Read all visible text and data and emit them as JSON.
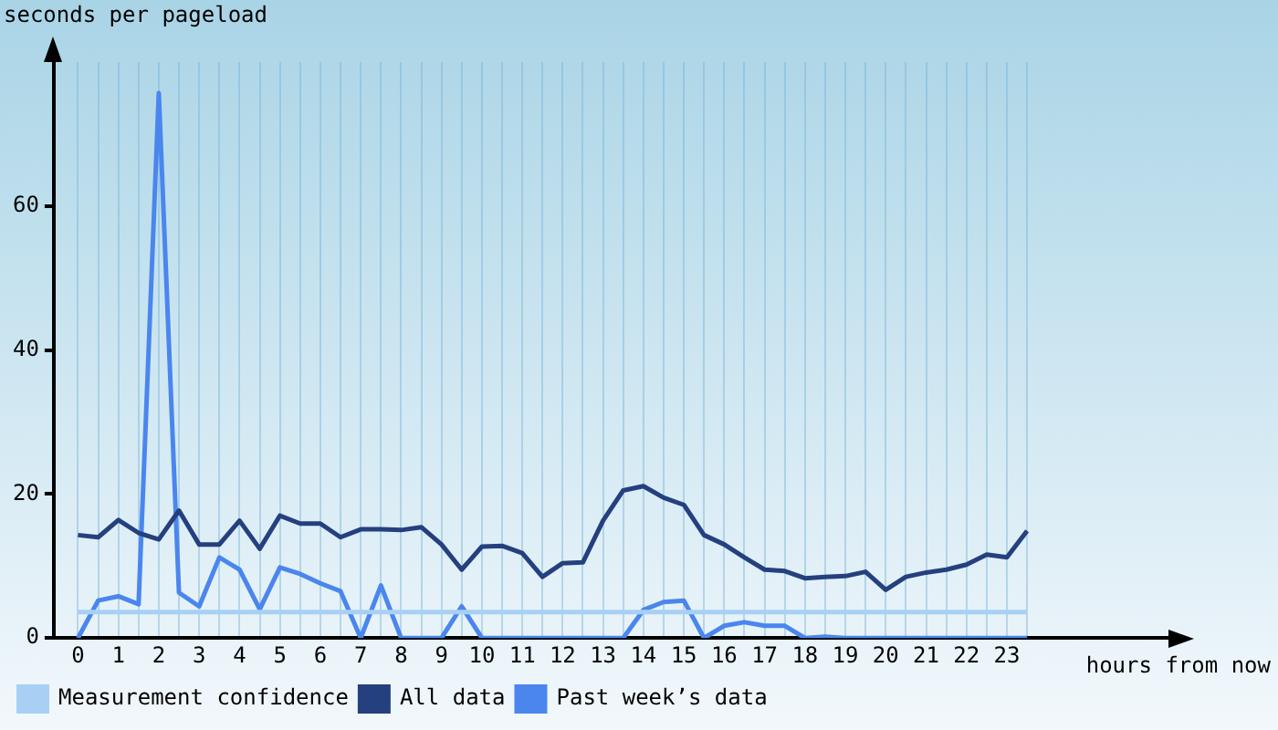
{
  "chart_data": {
    "type": "line",
    "ylabel": "seconds per pageload",
    "xlabel": "hours from now",
    "x": [
      0,
      0.5,
      1,
      1.5,
      2,
      2.5,
      3,
      3.5,
      4,
      4.5,
      5,
      5.5,
      6,
      6.5,
      7,
      7.5,
      8,
      8.5,
      9,
      9.5,
      10,
      10.5,
      11,
      11.5,
      12,
      12.5,
      13,
      13.5,
      14,
      14.5,
      15,
      15.5,
      16,
      16.5,
      17,
      17.5,
      18,
      18.5,
      19,
      19.5,
      20,
      20.5,
      21,
      21.5,
      22,
      22.5,
      23,
      23.5
    ],
    "series": [
      {
        "name": "Measurement confidence",
        "color": "#a8d0f4",
        "values": [
          3.6,
          3.6,
          3.6,
          3.6,
          3.6,
          3.6,
          3.6,
          3.6,
          3.6,
          3.6,
          3.6,
          3.6,
          3.6,
          3.6,
          3.6,
          3.6,
          3.6,
          3.6,
          3.6,
          3.6,
          3.6,
          3.6,
          3.6,
          3.6,
          3.6,
          3.6,
          3.6,
          3.6,
          3.6,
          3.6,
          3.6,
          3.6,
          3.6,
          3.6,
          3.6,
          3.6,
          3.6,
          3.6,
          3.6,
          3.6,
          3.6,
          3.6,
          3.6,
          3.6,
          3.6,
          3.6,
          3.6,
          3.6
        ]
      },
      {
        "name": "All data",
        "color": "#24407f",
        "values": [
          14.3,
          14.0,
          16.4,
          14.6,
          13.7,
          17.7,
          13.0,
          13.0,
          16.3,
          12.4,
          17.0,
          15.9,
          15.9,
          14.0,
          15.1,
          15.1,
          15.0,
          15.4,
          13.0,
          9.5,
          12.7,
          12.8,
          11.8,
          8.5,
          10.4,
          10.5,
          16.3,
          20.5,
          21.1,
          19.5,
          18.5,
          14.3,
          13.0,
          11.2,
          9.5,
          9.3,
          8.3,
          8.5,
          8.6,
          9.2,
          6.7,
          8.5,
          9.1,
          9.5,
          10.2,
          11.6,
          11.2,
          14.9
        ]
      },
      {
        "name": "Past week’s data",
        "color": "#4a86ee",
        "values": [
          0,
          5.2,
          5.8,
          4.7,
          75.7,
          6.3,
          4.4,
          11.2,
          9.5,
          4.0,
          9.8,
          8.9,
          7.6,
          6.5,
          0,
          7.3,
          0,
          0,
          0,
          4.4,
          0,
          0,
          0,
          0,
          0,
          0,
          0,
          0,
          3.9,
          5.0,
          5.2,
          0,
          1.7,
          2.2,
          1.7,
          1.7,
          0,
          0.2,
          0,
          0,
          0,
          0,
          0,
          0,
          0,
          0,
          0,
          0
        ]
      }
    ],
    "xlim": [
      -0.6,
      27
    ],
    "xticks": [
      0,
      {
        "value": 0.5,
        "label": null
      },
      1,
      {
        "value": 1.5,
        "label": null
      },
      2,
      {
        "value": 2.5,
        "label": null
      },
      3,
      {
        "value": 3.5,
        "label": null
      },
      4,
      {
        "value": 4.5,
        "label": null
      },
      5,
      {
        "value": 5.5,
        "label": null
      },
      6,
      {
        "value": 6.5,
        "label": null
      },
      7,
      {
        "value": 7.5,
        "label": null
      },
      8,
      {
        "value": 8.5,
        "label": null
      },
      9,
      {
        "value": 9.5,
        "label": null
      },
      10,
      {
        "value": 10.5,
        "label": null
      },
      11,
      {
        "value": 11.5,
        "label": null
      },
      12,
      {
        "value": 12.5,
        "label": null
      },
      13,
      {
        "value": 13.5,
        "label": null
      },
      14,
      {
        "value": 14.5,
        "label": null
      },
      15,
      {
        "value": 15.5,
        "label": null
      },
      16,
      {
        "value": 16.5,
        "label": null
      },
      17,
      {
        "value": 17.5,
        "label": null
      },
      18,
      {
        "value": 18.5,
        "label": null
      },
      19,
      {
        "value": 19.5,
        "label": null
      },
      20,
      {
        "value": 20.5,
        "label": null
      },
      21,
      {
        "value": 21.5,
        "label": null
      },
      22,
      {
        "value": 22.5,
        "label": null
      },
      23,
      {
        "value": 23.5,
        "label": null
      }
    ],
    "ylim": [
      0,
      80
    ],
    "yticks": [
      0,
      20,
      40,
      60
    ],
    "grid": "x",
    "legend": "bottom",
    "marker": "none",
    "line_style": "solid"
  }
}
